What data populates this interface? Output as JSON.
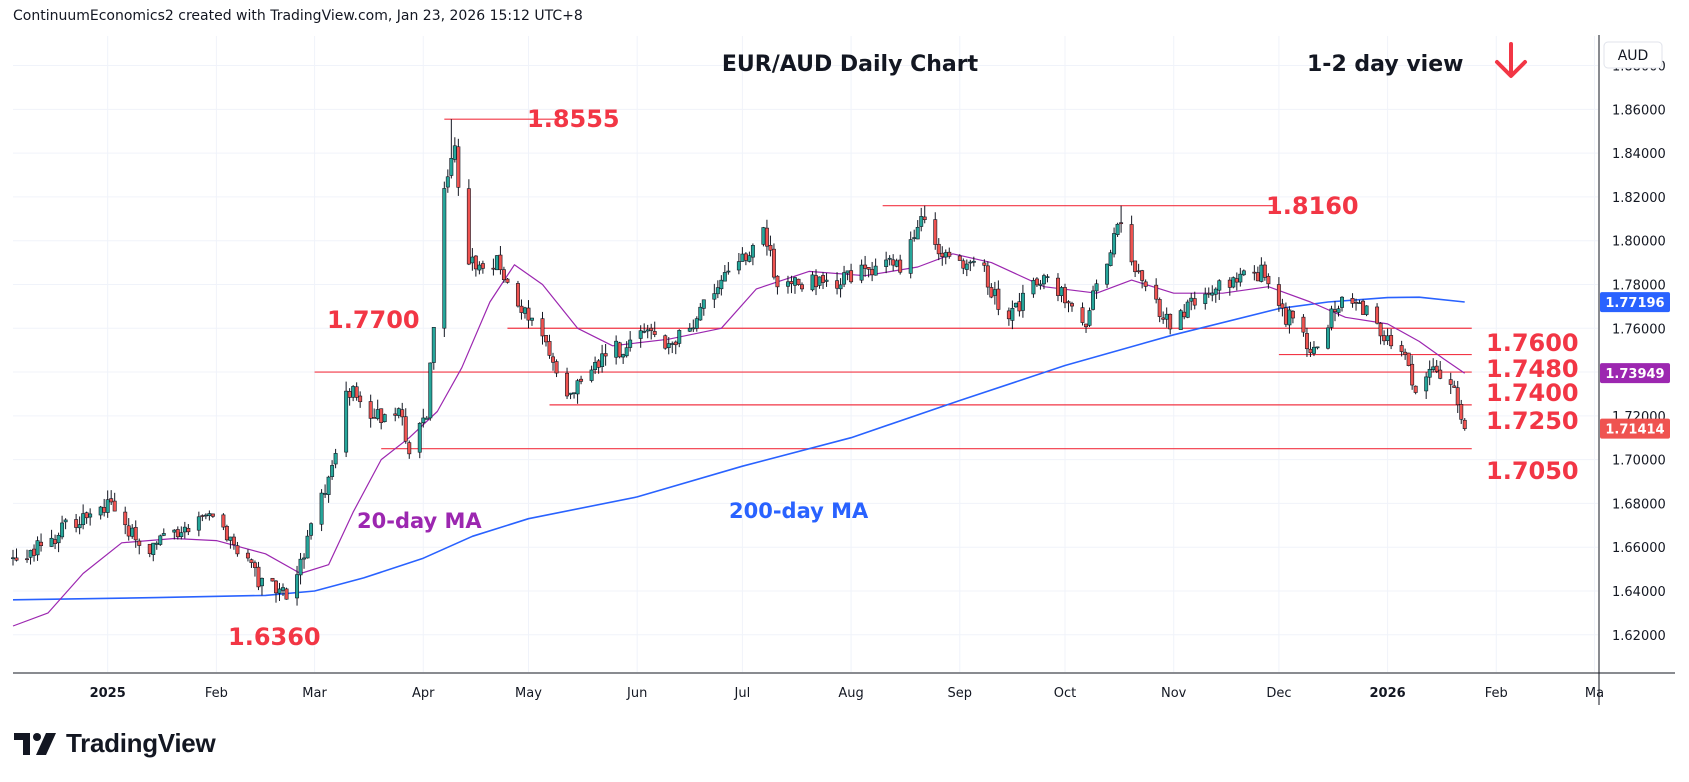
{
  "header": {
    "attribution": "ContinuumEconomics2 created with TradingView.com, Jan 23, 2026 15:12 UTC+8"
  },
  "footer": {
    "brand": "TradingView"
  },
  "colors": {
    "up": "#26a69a",
    "down": "#ef5350",
    "ma20": "#9c27b0",
    "ma200": "#2962ff",
    "level_line": "#f23645",
    "level_text": "#f23645",
    "text": "#131722",
    "grid": "#f0f3fa"
  },
  "chart_data": {
    "type": "candlestick",
    "title": "EUR/AUD Daily Chart",
    "view_label": "1-2 day view",
    "view_direction": "down",
    "currency": "AUD",
    "ylim": [
      1.603,
      1.8935
    ],
    "y_ticks": [
      "1.88000",
      "1.86000",
      "1.84000",
      "1.82000",
      "1.80000",
      "1.78000",
      "1.76000",
      "1.74000",
      "1.72000",
      "1.70000",
      "1.68000",
      "1.66000",
      "1.64000",
      "1.62000"
    ],
    "x_axis": {
      "start": "2024-12-05",
      "end": "2026-03-02",
      "labels": [
        {
          "text": "2025",
          "date": "2025-01-01",
          "bold": true
        },
        {
          "text": "Feb",
          "date": "2025-02-01"
        },
        {
          "text": "Mar",
          "date": "2025-03-01"
        },
        {
          "text": "Apr",
          "date": "2025-04-01"
        },
        {
          "text": "May",
          "date": "2025-05-01"
        },
        {
          "text": "Jun",
          "date": "2025-06-01"
        },
        {
          "text": "Jul",
          "date": "2025-07-01"
        },
        {
          "text": "Aug",
          "date": "2025-08-01"
        },
        {
          "text": "Sep",
          "date": "2025-09-01"
        },
        {
          "text": "Oct",
          "date": "2025-10-01"
        },
        {
          "text": "Nov",
          "date": "2025-11-01"
        },
        {
          "text": "Dec",
          "date": "2025-12-01"
        },
        {
          "text": "2026",
          "date": "2026-01-01",
          "bold": true
        },
        {
          "text": "Feb",
          "date": "2026-02-01"
        },
        {
          "text": "Ma",
          "date": "2026-03-01"
        }
      ]
    },
    "price_badges": [
      {
        "label": "1.77196",
        "value": 1.77196,
        "color": "#2962ff",
        "series": "200-day MA"
      },
      {
        "label": "1.73949",
        "value": 1.73949,
        "color": "#9c27b0",
        "series": "20-day MA"
      },
      {
        "label": "1.71414",
        "value": 1.71414,
        "color": "#ef5350",
        "series": "EUR/AUD"
      }
    ],
    "levels": [
      {
        "label": "1.8555",
        "value": 1.8555,
        "from": "2025-04-07",
        "to": "2025-05-10"
      },
      {
        "label": "1.8160",
        "value": 1.816,
        "from": "2025-08-10",
        "to": "2025-11-30"
      },
      {
        "label": "1.7700",
        "value": 1.77,
        "from": null,
        "to": null
      },
      {
        "label": "1.7600",
        "value": 1.76,
        "from": "2025-04-25",
        "to": "2026-01-25"
      },
      {
        "label": "1.7480",
        "value": 1.748,
        "from": "2025-12-01",
        "to": "2026-01-25"
      },
      {
        "label": "1.7400",
        "value": 1.74,
        "from": "2025-03-01",
        "to": "2026-01-25"
      },
      {
        "label": "1.7250",
        "value": 1.725,
        "from": "2025-05-07",
        "to": "2026-01-25"
      },
      {
        "label": "1.7050",
        "value": 1.705,
        "from": "2025-03-20",
        "to": "2026-01-25"
      },
      {
        "label": "1.6360",
        "value": 1.636,
        "from": null,
        "to": null
      }
    ],
    "annotations": [
      {
        "text": "20-day MA",
        "color": "#9c27b0"
      },
      {
        "text": "200-day MA",
        "color": "#2962ff"
      }
    ],
    "anchors": [
      [
        "2024-12-05",
        1.655
      ],
      [
        "2024-12-20",
        1.668
      ],
      [
        "2025-01-02",
        1.68
      ],
      [
        "2025-01-10",
        1.66
      ],
      [
        "2025-01-22",
        1.664
      ],
      [
        "2025-02-01",
        1.676
      ],
      [
        "2025-02-05",
        1.664
      ],
      [
        "2025-02-12",
        1.647
      ],
      [
        "2025-02-20",
        1.638
      ],
      [
        "2025-02-24",
        1.648
      ],
      [
        "2025-03-05",
        1.69
      ],
      [
        "2025-03-10",
        1.733
      ],
      [
        "2025-03-18",
        1.718
      ],
      [
        "2025-03-25",
        1.722
      ],
      [
        "2025-03-28",
        1.706
      ],
      [
        "2025-04-02",
        1.722
      ],
      [
        "2025-04-07",
        1.82
      ],
      [
        "2025-04-10",
        1.842
      ],
      [
        "2025-04-14",
        1.788
      ],
      [
        "2025-04-22",
        1.79
      ],
      [
        "2025-04-28",
        1.77
      ],
      [
        "2025-05-05",
        1.755
      ],
      [
        "2025-05-13",
        1.728
      ],
      [
        "2025-05-20",
        1.745
      ],
      [
        "2025-06-01",
        1.755
      ],
      [
        "2025-06-15",
        1.755
      ],
      [
        "2025-06-22",
        1.778
      ],
      [
        "2025-07-01",
        1.79
      ],
      [
        "2025-07-07",
        1.802
      ],
      [
        "2025-07-12",
        1.778
      ],
      [
        "2025-07-28",
        1.782
      ],
      [
        "2025-08-05",
        1.786
      ],
      [
        "2025-08-15",
        1.79
      ],
      [
        "2025-08-22",
        1.812
      ],
      [
        "2025-08-27",
        1.795
      ],
      [
        "2025-09-08",
        1.785
      ],
      [
        "2025-09-15",
        1.762
      ],
      [
        "2025-09-22",
        1.783
      ],
      [
        "2025-10-01",
        1.776
      ],
      [
        "2025-10-07",
        1.765
      ],
      [
        "2025-10-12",
        1.79
      ],
      [
        "2025-10-17",
        1.808
      ],
      [
        "2025-10-22",
        1.785
      ],
      [
        "2025-10-30",
        1.762
      ],
      [
        "2025-11-05",
        1.768
      ],
      [
        "2025-11-12",
        1.778
      ],
      [
        "2025-11-20",
        1.786
      ],
      [
        "2025-11-26",
        1.785
      ],
      [
        "2025-12-02",
        1.768
      ],
      [
        "2025-12-10",
        1.752
      ],
      [
        "2025-12-14",
        1.758
      ],
      [
        "2025-12-20",
        1.778
      ],
      [
        "2025-12-28",
        1.762
      ],
      [
        "2026-01-05",
        1.752
      ],
      [
        "2026-01-09",
        1.733
      ],
      [
        "2026-01-14",
        1.738
      ],
      [
        "2026-01-18",
        1.742
      ],
      [
        "2026-01-19",
        1.736
      ],
      [
        "2026-01-21",
        1.728
      ],
      [
        "2026-01-22",
        1.716
      ],
      [
        "2026-01-23",
        1.7141
      ]
    ],
    "ma20_points": [
      [
        "2024-12-05",
        1.624
      ],
      [
        "2024-12-15",
        1.63
      ],
      [
        "2024-12-25",
        1.648
      ],
      [
        "2025-01-05",
        1.662
      ],
      [
        "2025-01-20",
        1.664
      ],
      [
        "2025-02-01",
        1.663
      ],
      [
        "2025-02-15",
        1.657
      ],
      [
        "2025-02-25",
        1.648
      ],
      [
        "2025-03-05",
        1.652
      ],
      [
        "2025-03-12",
        1.676
      ],
      [
        "2025-03-20",
        1.7
      ],
      [
        "2025-03-28",
        1.71
      ],
      [
        "2025-04-05",
        1.722
      ],
      [
        "2025-04-12",
        1.742
      ],
      [
        "2025-04-20",
        1.772
      ],
      [
        "2025-04-27",
        1.789
      ],
      [
        "2025-05-05",
        1.78
      ],
      [
        "2025-05-15",
        1.76
      ],
      [
        "2025-05-25",
        1.752
      ],
      [
        "2025-06-10",
        1.755
      ],
      [
        "2025-06-25",
        1.76
      ],
      [
        "2025-07-05",
        1.778
      ],
      [
        "2025-07-20",
        1.786
      ],
      [
        "2025-08-05",
        1.784
      ],
      [
        "2025-08-20",
        1.788
      ],
      [
        "2025-08-30",
        1.794
      ],
      [
        "2025-09-10",
        1.79
      ],
      [
        "2025-09-25",
        1.779
      ],
      [
        "2025-10-10",
        1.776
      ],
      [
        "2025-10-20",
        1.782
      ],
      [
        "2025-11-01",
        1.776
      ],
      [
        "2025-11-15",
        1.776
      ],
      [
        "2025-11-28",
        1.779
      ],
      [
        "2025-12-10",
        1.772
      ],
      [
        "2025-12-20",
        1.765
      ],
      [
        "2026-01-01",
        1.762
      ],
      [
        "2026-01-10",
        1.754
      ],
      [
        "2026-01-17",
        1.746
      ],
      [
        "2026-01-23",
        1.7395
      ]
    ],
    "ma200_points": [
      [
        "2024-12-05",
        1.636
      ],
      [
        "2025-01-15",
        1.637
      ],
      [
        "2025-02-15",
        1.638
      ],
      [
        "2025-03-01",
        1.64
      ],
      [
        "2025-03-15",
        1.646
      ],
      [
        "2025-04-01",
        1.655
      ],
      [
        "2025-04-15",
        1.665
      ],
      [
        "2025-05-01",
        1.673
      ],
      [
        "2025-06-01",
        1.683
      ],
      [
        "2025-07-01",
        1.697
      ],
      [
        "2025-08-01",
        1.71
      ],
      [
        "2025-09-01",
        1.727
      ],
      [
        "2025-10-01",
        1.743
      ],
      [
        "2025-11-01",
        1.757
      ],
      [
        "2025-12-01",
        1.769
      ],
      [
        "2025-12-15",
        1.772
      ],
      [
        "2026-01-01",
        1.774
      ],
      [
        "2026-01-10",
        1.7742
      ],
      [
        "2026-01-23",
        1.772
      ]
    ]
  }
}
